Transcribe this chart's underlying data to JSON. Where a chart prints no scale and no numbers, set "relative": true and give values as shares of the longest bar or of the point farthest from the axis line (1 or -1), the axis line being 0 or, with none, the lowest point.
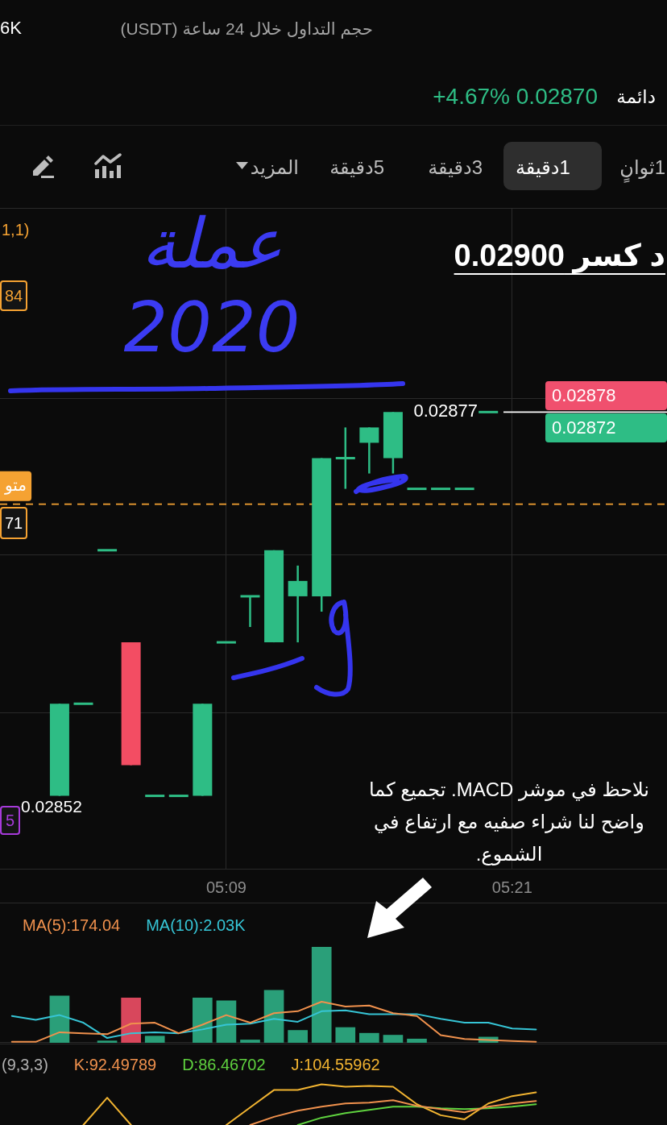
{
  "chart_data": [
    {
      "type": "other",
      "annotations": [
        "6K",
        "حجم التداول خلال 24 ساعة (USDT)",
        "+4.67% 0.02870",
        "دائمة",
        "1ثوانٍ",
        "1دقيقة",
        "3دقيقة",
        "5دقيقة",
        "المزيد"
      ]
    },
    {
      "type": "candlestick",
      "categories": [
        null,
        null,
        null,
        null,
        null,
        null,
        null,
        null,
        null,
        "05:09",
        null,
        null,
        null,
        null,
        null,
        null,
        null,
        null,
        null,
        null,
        null,
        "05:21",
        null,
        null,
        null,
        null,
        null,
        null
      ],
      "ohlc": [
        null,
        null,
        [
          0.02852,
          0.02858,
          0.02852,
          0.02858
        ],
        [
          0.02858,
          0.02858,
          0.02858,
          0.02858
        ],
        [
          0.02868,
          0.02868,
          0.02868,
          0.02868
        ],
        [
          0.02862,
          0.02862,
          0.02854,
          0.02854
        ],
        [
          0.02852,
          0.02852,
          0.02852,
          0.02852
        ],
        [
          0.02852,
          0.02852,
          0.02852,
          0.02852
        ],
        [
          0.02852,
          0.02858,
          0.02852,
          0.02858
        ],
        [
          0.02862,
          0.02862,
          0.02862,
          0.02862
        ],
        [
          0.02865,
          0.02865,
          0.02863,
          0.02865
        ],
        [
          0.02862,
          0.02868,
          0.02862,
          0.02868
        ],
        [
          0.02865,
          0.02867,
          0.02862,
          0.02866
        ],
        [
          0.02865,
          0.02874,
          0.02864,
          0.02874
        ],
        [
          0.02874,
          0.02876,
          0.02872,
          0.02874
        ],
        [
          0.02875,
          0.02876,
          0.02873,
          0.02876
        ],
        [
          0.02874,
          0.02877,
          0.02873,
          0.02877
        ],
        [
          0.02872,
          0.02872,
          0.02872,
          0.02872
        ],
        [
          0.02872,
          0.02872,
          0.02872,
          0.02872
        ],
        [
          0.02872,
          0.02872,
          0.02872,
          0.02872
        ],
        [
          0.02877,
          0.02877,
          0.02877,
          0.02877
        ],
        null,
        null,
        null,
        null,
        null,
        null,
        null
      ],
      "colors": [
        null,
        null,
        "#2ebd85",
        "#2ebd85",
        "#2ebd85",
        "#f34d63",
        "#2ebd85",
        "#2ebd85",
        "#2ebd85",
        "#2ebd85",
        "#2ebd85",
        "#2ebd85",
        "#2ebd85",
        "#2ebd85",
        "#2ebd85",
        "#2ebd85",
        "#2ebd85",
        "#2ebd85",
        "#2ebd85",
        "#2ebd85",
        "#2ebd85",
        null,
        null,
        null,
        null,
        null,
        null,
        null
      ],
      "ylim": [
        0.028472,
        0.028903
      ],
      "yticks": [
        {
          "value": 0.028574,
          "label": null
        },
        {
          "value": 0.028677,
          "label": null
        },
        {
          "value": 0.028779,
          "label": null
        }
      ],
      "grid": true,
      "tick_labels": "x",
      "ref_lines": [
        {
          "axis": "y",
          "value": 0.02877,
          "label": "0.02877",
          "color": "#ffffff"
        },
        {
          "axis": "y",
          "value": 0.02871,
          "label": "متو",
          "color": "#f5a232",
          "line_style": "dashed"
        }
      ],
      "annotations": [
        "عملة 2020",
        "د كسر 0.02900",
        "1,1)",
        "84",
        "71",
        "5",
        {
          "text": "0.02852",
          "y": 0.02852
        },
        "نلاحظ في موشر MACD. تجميع كما واضح لنا شراء صفيه مع ارتفاع في الشموع.",
        "0.02878",
        "0.02872"
      ]
    },
    {
      "type": "bar",
      "relative": true,
      "categories": [
        null,
        null,
        null,
        null,
        null,
        null,
        null,
        null,
        null,
        null,
        null,
        null,
        null,
        null,
        null,
        null,
        null,
        null,
        null,
        null,
        null,
        null,
        null,
        null,
        null,
        null,
        null,
        null
      ],
      "legend": "top left",
      "series": [
        {
          "values": [
            null,
            null,
            0.49,
            null,
            0.02,
            0.47,
            0.07,
            null,
            0.47,
            0.44,
            0.03,
            0.55,
            0.13,
            1,
            0.16,
            0.1,
            0.08,
            0.04,
            null,
            null,
            0.06,
            null,
            null,
            null,
            null,
            null,
            null,
            null
          ],
          "colors": [
            null,
            null,
            "#2a9f79",
            "#2a9f79",
            "#2a9f79",
            "#d8475c",
            "#2a9f79",
            "#2a9f79",
            "#2a9f79",
            "#2a9f79",
            "#2a9f79",
            "#2a9f79",
            "#2a9f79",
            "#2a9f79",
            "#2a9f79",
            "#2a9f79",
            "#2a9f79",
            "#2a9f79",
            "#2a9f79",
            "#2a9f79",
            "#2a9f79",
            null,
            null,
            null,
            null,
            null,
            null,
            null
          ]
        },
        {
          "name": "MA(5):174.04",
          "type": "line",
          "color": "#f0914d",
          "values": [
            0.01,
            0.01,
            0.11,
            0.1,
            0.09,
            0.2,
            0.21,
            0.1,
            0.19,
            0.29,
            0.21,
            0.31,
            0.33,
            0.43,
            0.38,
            0.39,
            0.31,
            0.28,
            0.08,
            0.04,
            0.03,
            0.02,
            0.01,
            null,
            null,
            null,
            null,
            null
          ]
        },
        {
          "name": "MA(10):2.03K",
          "type": "line",
          "color": "#36c5d6",
          "values": [
            0.28,
            0.24,
            0.29,
            0.21,
            0.05,
            0.1,
            0.11,
            0.1,
            0.14,
            0.19,
            0.2,
            0.25,
            0.22,
            0.33,
            0.34,
            0.3,
            0.3,
            0.3,
            0.25,
            0.21,
            0.21,
            0.15,
            0.14,
            null,
            null,
            null,
            null,
            null
          ]
        }
      ]
    },
    {
      "type": "line",
      "title": "(9,3,3)",
      "relative": true,
      "categories": [
        null,
        null,
        null,
        null,
        null,
        null,
        null,
        null,
        null,
        null,
        null,
        null,
        null,
        null,
        null,
        null,
        null,
        null,
        null,
        null,
        null,
        null,
        null,
        null,
        null,
        null,
        null,
        null
      ],
      "legend": "top left",
      "series": [
        {
          "name": "K:92.49789",
          "color": "#f0914d",
          "values": [
            null,
            null,
            null,
            null,
            null,
            null,
            null,
            null,
            null,
            null,
            0,
            0.2,
            0.35,
            0.45,
            0.53,
            0.55,
            0.61,
            0.47,
            0.39,
            0.31,
            0.45,
            0.53,
            0.59,
            null,
            null,
            null,
            null,
            null
          ]
        },
        {
          "name": "D:86.46702",
          "color": "#5fd23f",
          "values": [
            null,
            null,
            null,
            null,
            null,
            null,
            null,
            null,
            null,
            null,
            null,
            null,
            0,
            0.18,
            0.29,
            0.37,
            0.45,
            0.45,
            0.41,
            0.39,
            0.41,
            0.45,
            0.51,
            null,
            null,
            null,
            null,
            null
          ]
        },
        {
          "name": "J:104.55962",
          "color": "#f2b431",
          "values": [
            null,
            null,
            null,
            0,
            0.67,
            0,
            null,
            null,
            null,
            0,
            0.43,
            0.86,
            0.86,
            1,
            0.94,
            0.96,
            0.94,
            0.51,
            0.24,
            0.14,
            0.53,
            0.71,
            0.8,
            null,
            null,
            null,
            null,
            null
          ]
        }
      ]
    }
  ]
}
